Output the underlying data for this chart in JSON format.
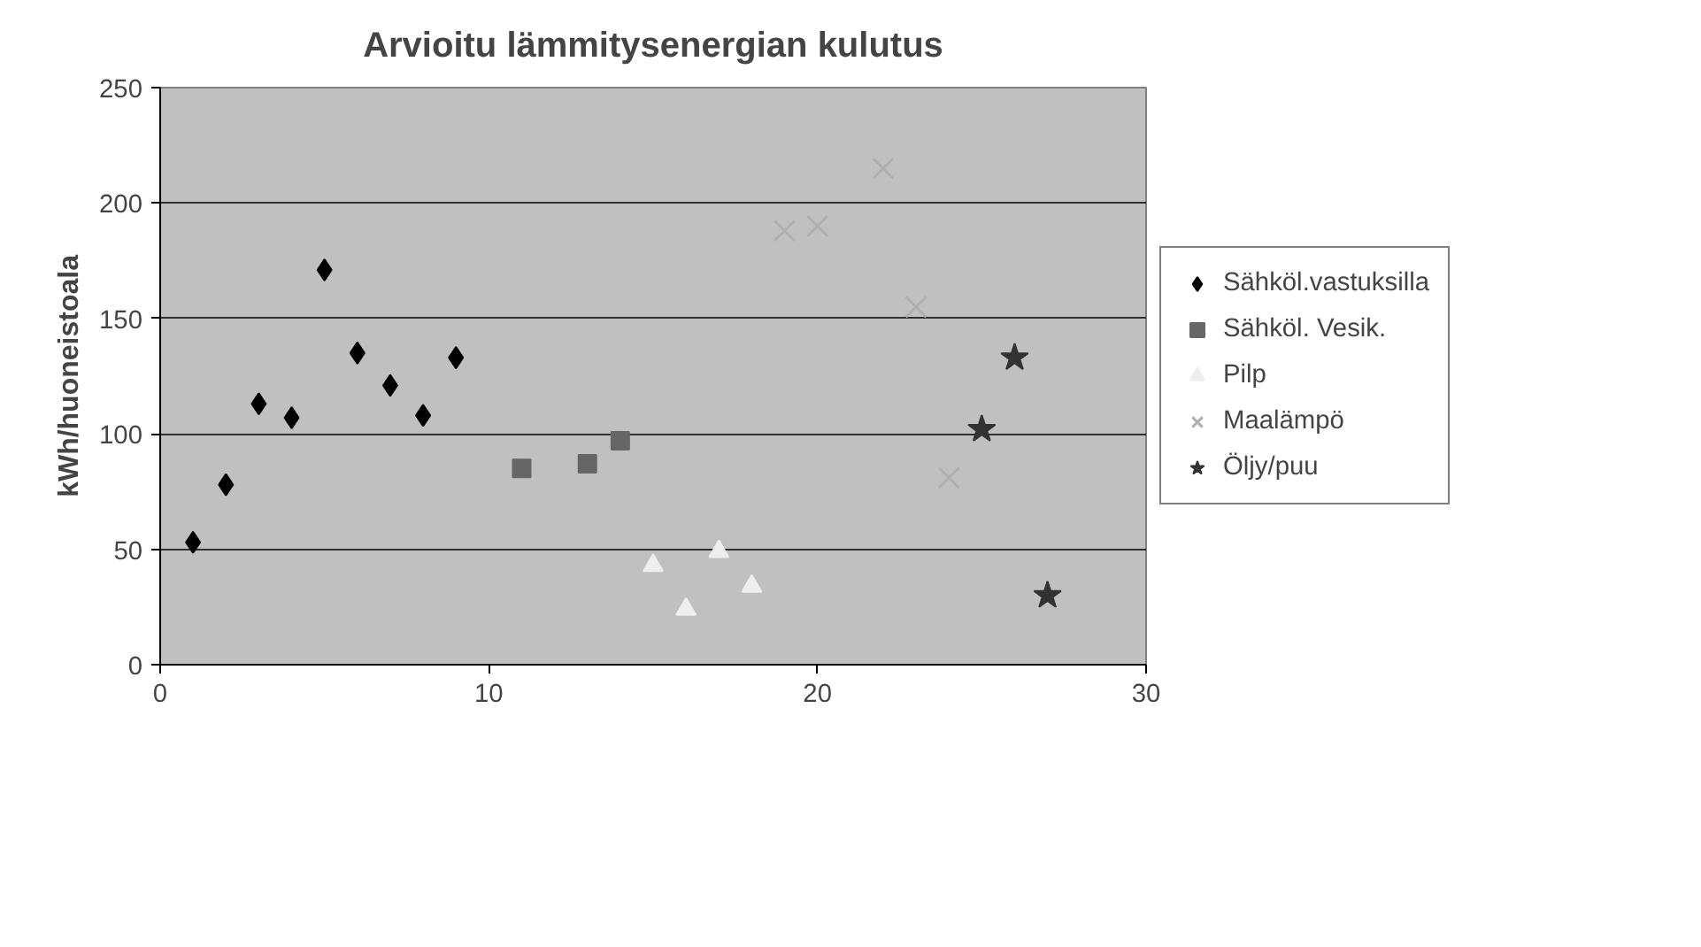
{
  "chart_data": {
    "type": "scatter",
    "title": "Arvioitu lämmitysenergian kulutus",
    "ylabel": "kWh/huoneistoala",
    "xlim": [
      0,
      30
    ],
    "xticks": [
      0,
      10,
      20,
      30
    ],
    "ylim": [
      0,
      250
    ],
    "yticks": [
      0,
      50,
      100,
      150,
      200,
      250
    ],
    "grid": "y",
    "legend": "right",
    "series": [
      {
        "name": "Sähköl.vastuksilla",
        "color": "#000000",
        "marker": "diamond",
        "x": [
          1,
          2,
          3,
          4,
          5,
          6,
          7,
          8,
          9
        ],
        "values": [
          53,
          78,
          113,
          107,
          171,
          135,
          121,
          108,
          133
        ]
      },
      {
        "name": "Sähköl. Vesik.",
        "color": "#666666",
        "marker": "square",
        "x": [
          11,
          13,
          14
        ],
        "values": [
          85,
          87,
          97
        ]
      },
      {
        "name": "Pilp",
        "color": "#eeeeee",
        "marker": "triangle",
        "x": [
          15,
          16,
          17,
          18
        ],
        "values": [
          43,
          24,
          49,
          34
        ]
      },
      {
        "name": "Maalämpö",
        "color": "#b0b0b0",
        "marker": "cross",
        "x": [
          19,
          20,
          22,
          23,
          24
        ],
        "values": [
          188,
          190,
          215,
          155,
          81
        ]
      },
      {
        "name": "Öljy/puu",
        "color": "#333333",
        "marker": "star",
        "x": [
          25,
          26,
          27
        ],
        "values": [
          102,
          133,
          30
        ]
      }
    ]
  }
}
